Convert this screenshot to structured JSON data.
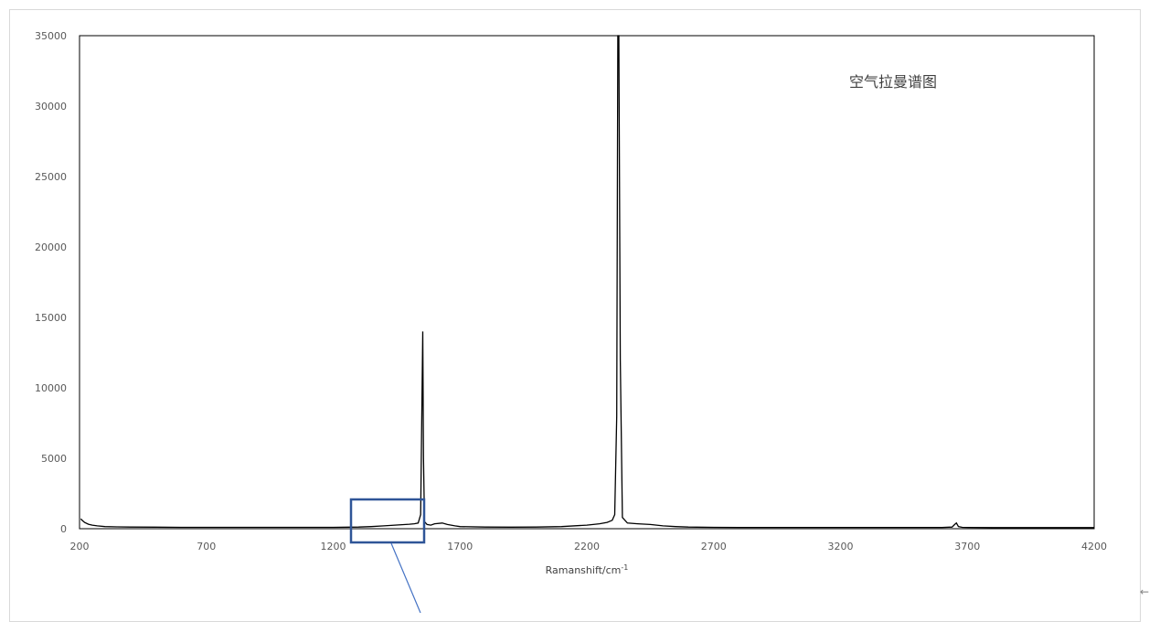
{
  "chart_data": {
    "type": "line",
    "title": "空气拉曼谱图",
    "xlabel": "Ramanshift/cm",
    "xlabel_superscript": "-1",
    "ylabel": "",
    "xlim": [
      200,
      4200
    ],
    "ylim": [
      0,
      35000
    ],
    "x_ticks": [
      "200",
      "700",
      "1200",
      "1700",
      "2200",
      "2700",
      "3200",
      "3700",
      "4200"
    ],
    "y_ticks": [
      "0",
      "5000",
      "10000",
      "15000",
      "20000",
      "25000",
      "30000",
      "35000"
    ],
    "grid": false,
    "legend": "none",
    "series_color": "#000000",
    "highlight_box_color": "#2F5597",
    "series": [
      {
        "x": [
          205,
          210,
          220,
          235,
          250,
          270,
          300,
          350,
          400,
          500,
          600,
          700,
          800,
          900,
          1000,
          1100,
          1200,
          1300,
          1350,
          1400,
          1450,
          1500,
          1520,
          1535,
          1545,
          1553,
          1556,
          1560,
          1570,
          1585,
          1600,
          1630,
          1650,
          1680,
          1700,
          1800,
          1900,
          2000,
          2100,
          2200,
          2250,
          2280,
          2300,
          2310,
          2318,
          2322,
          2326,
          2332,
          2340,
          2360,
          2400,
          2450,
          2500,
          2550,
          2600,
          2700,
          2800,
          2900,
          3000,
          3100,
          3200,
          3300,
          3400,
          3500,
          3600,
          3640,
          3650,
          3657,
          3665,
          3680,
          3700,
          3800,
          3900,
          4000,
          4100,
          4200
        ],
        "y": [
          700,
          600,
          450,
          320,
          250,
          200,
          150,
          130,
          120,
          110,
          100,
          100,
          100,
          100,
          100,
          100,
          100,
          120,
          150,
          200,
          260,
          320,
          350,
          400,
          1000,
          14000,
          5000,
          500,
          300,
          250,
          350,
          400,
          300,
          200,
          150,
          120,
          110,
          120,
          150,
          250,
          350,
          450,
          600,
          1000,
          8000,
          35000,
          35000,
          12000,
          800,
          400,
          350,
          300,
          200,
          150,
          120,
          100,
          90,
          90,
          90,
          90,
          90,
          90,
          90,
          90,
          90,
          120,
          300,
          400,
          150,
          100,
          90,
          80,
          80,
          80,
          80,
          80
        ]
      }
    ]
  }
}
